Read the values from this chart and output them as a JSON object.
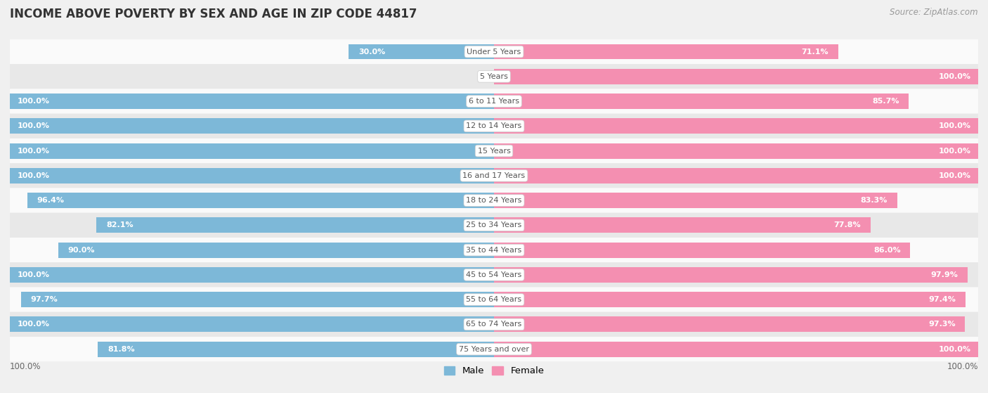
{
  "title": "INCOME ABOVE POVERTY BY SEX AND AGE IN ZIP CODE 44817",
  "source": "Source: ZipAtlas.com",
  "categories": [
    "Under 5 Years",
    "5 Years",
    "6 to 11 Years",
    "12 to 14 Years",
    "15 Years",
    "16 and 17 Years",
    "18 to 24 Years",
    "25 to 34 Years",
    "35 to 44 Years",
    "45 to 54 Years",
    "55 to 64 Years",
    "65 to 74 Years",
    "75 Years and over"
  ],
  "male": [
    30.0,
    0.0,
    100.0,
    100.0,
    100.0,
    100.0,
    96.4,
    82.1,
    90.0,
    100.0,
    97.7,
    100.0,
    81.8
  ],
  "female": [
    71.1,
    100.0,
    85.7,
    100.0,
    100.0,
    100.0,
    83.3,
    77.8,
    86.0,
    97.9,
    97.4,
    97.3,
    100.0
  ],
  "male_color": "#7db8d8",
  "female_color": "#f48fb1",
  "background_color": "#f0f0f0",
  "row_color_odd": "#fafafa",
  "row_color_even": "#e8e8e8",
  "label_color_inside": "#ffffff",
  "label_color_outside": "#666666",
  "center_label_color": "#555555",
  "title_color": "#333333",
  "max_value": 100.0,
  "bar_height": 0.62,
  "legend_male": "Male",
  "legend_female": "Female",
  "bottom_label": "100.0%"
}
